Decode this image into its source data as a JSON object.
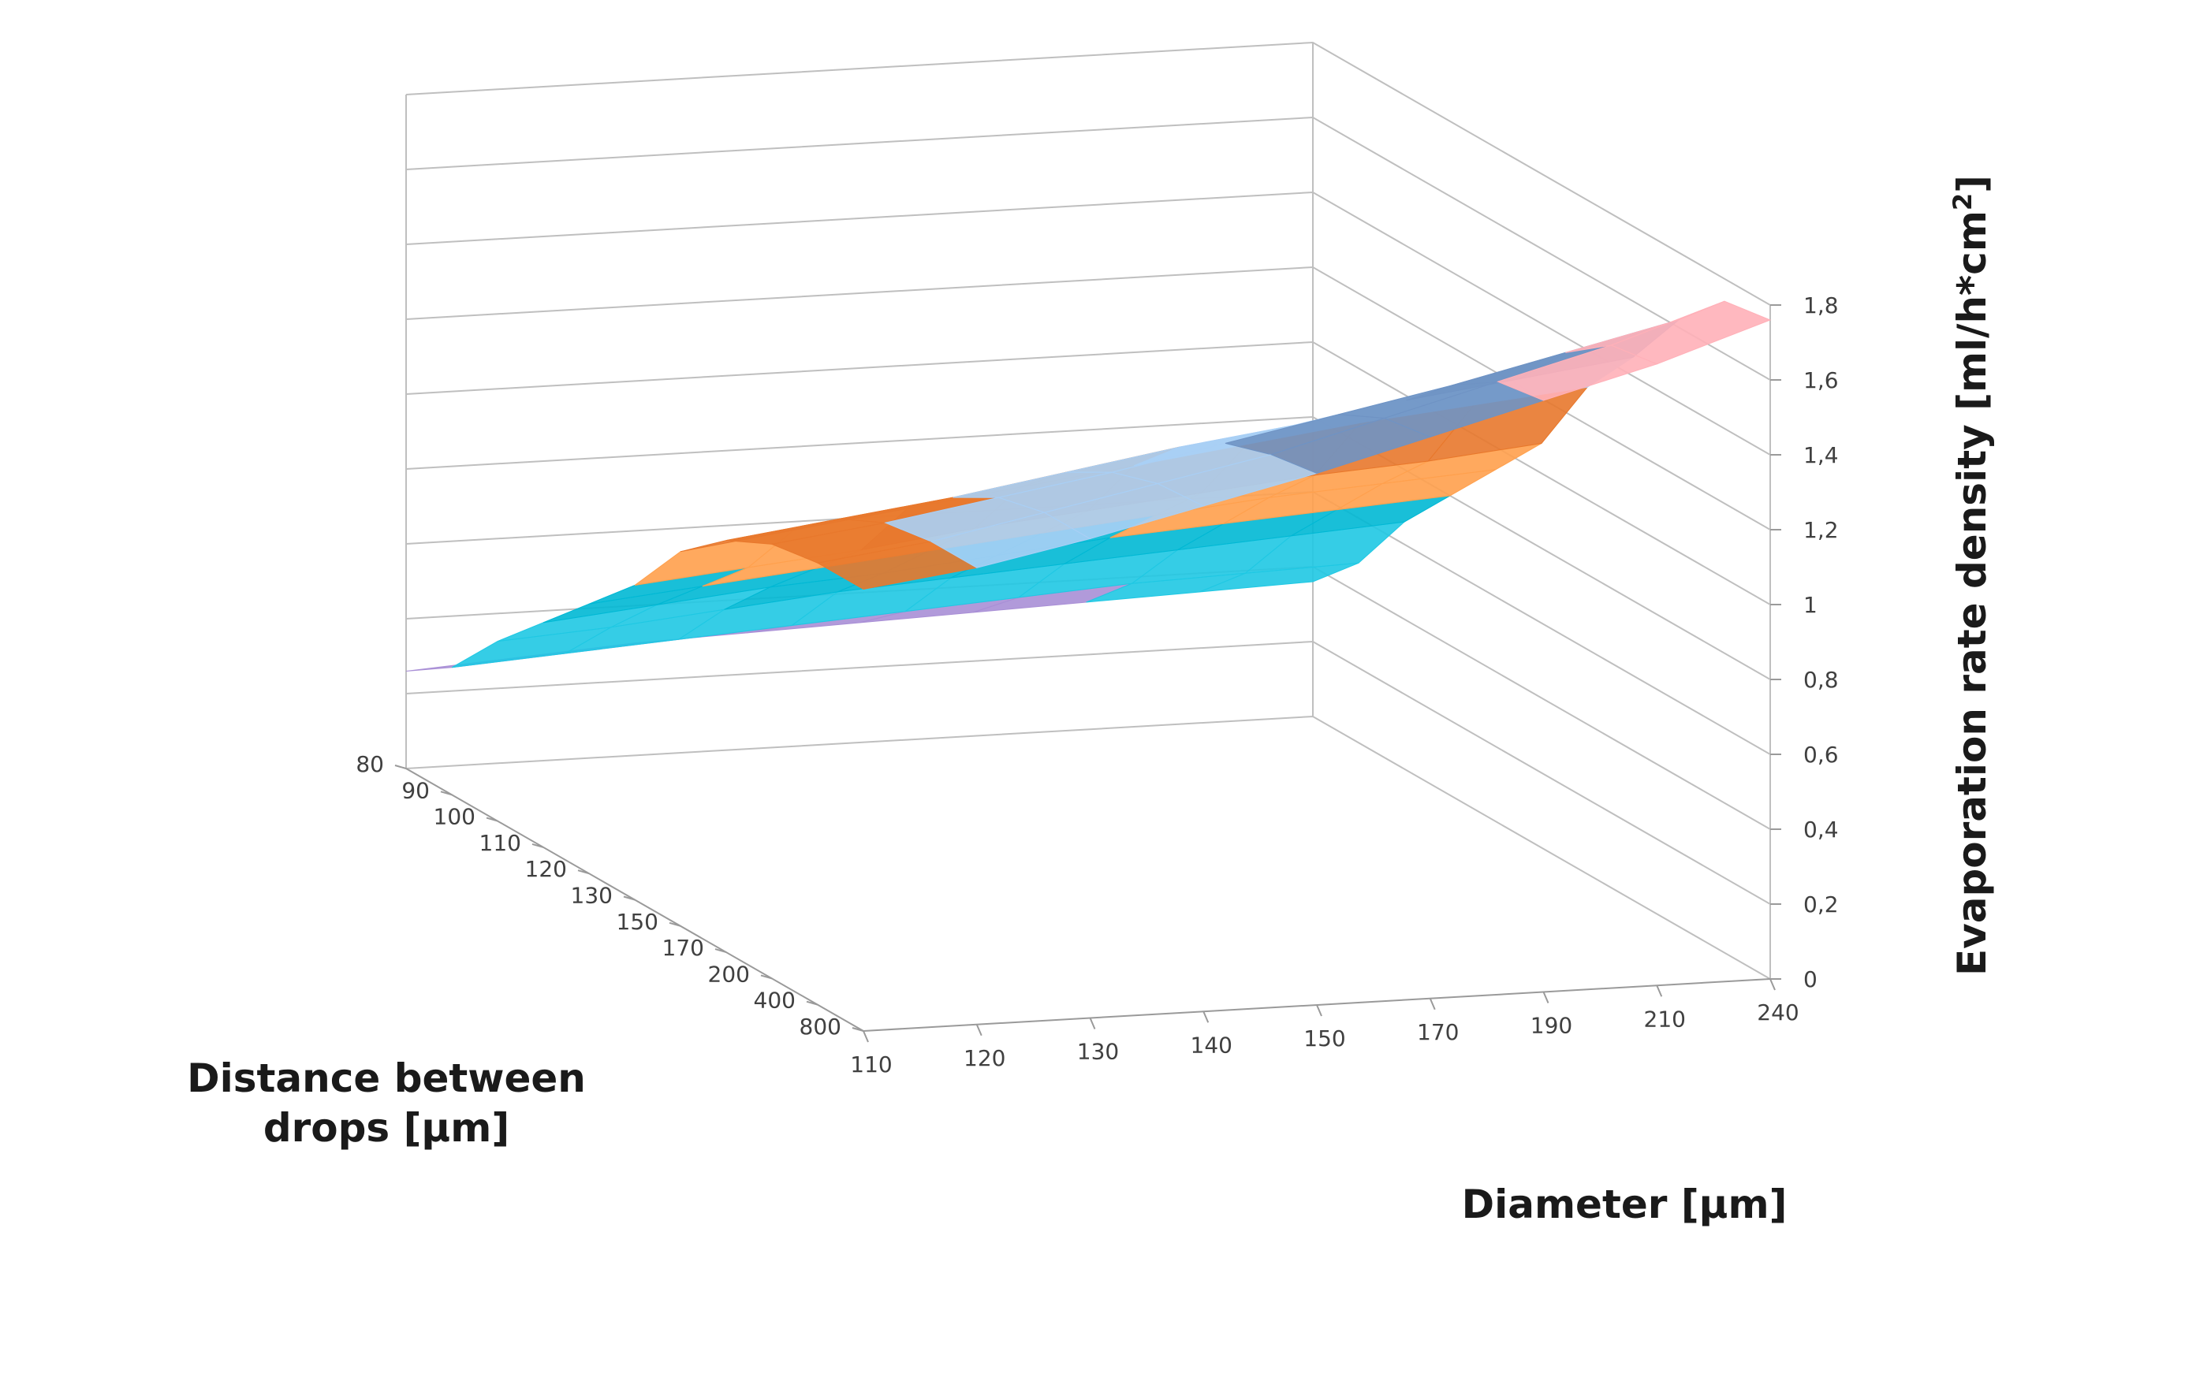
{
  "chart_data": {
    "type": "surface",
    "title": "",
    "xlabel": "Diameter [µm]",
    "ylabel_lines": [
      "Distance between",
      "drops [µm]"
    ],
    "zlabel": "Evaporation rate density [ml/h*cm",
    "zlabel_sup": "2",
    "zlabel_end": "]",
    "x_ticks": [
      "110",
      "120",
      "130",
      "140",
      "150",
      "170",
      "190",
      "210",
      "240"
    ],
    "y_ticks": [
      "80",
      "90",
      "100",
      "110",
      "120",
      "130",
      "150",
      "170",
      "200",
      "400",
      "800"
    ],
    "z_ticks": [
      "0",
      "0,2",
      "0,4",
      "0,6",
      "0,8",
      "1",
      "1,2",
      "1,4",
      "1,6",
      "1,8"
    ],
    "zlim": [
      0,
      1.8
    ],
    "grid": true,
    "legend": "none",
    "bands": [
      {
        "range": "0-0,2",
        "color": "#b5e37a"
      },
      {
        "range": "0,2-0,4",
        "color": "#a98fd6"
      },
      {
        "range": "0,4-0,6",
        "color": "#1fc8e3"
      },
      {
        "range": "0,6-0,8",
        "color": "#00b8d4"
      },
      {
        "range": "0,8-1",
        "color": "#ffa04d"
      },
      {
        "range": "1-1,2",
        "color": "#e8782c"
      },
      {
        "range": "1,2-1,4",
        "color": "#a9cff5"
      },
      {
        "range": "1,4-1,6",
        "color": "#6f93c4"
      },
      {
        "range": "1,6-1,8",
        "color": "#ffb0b8"
      }
    ],
    "z_values_by_distance": [
      {
        "distance": "80",
        "values": [
          0.26,
          0.28,
          0.3,
          0.31,
          0.32,
          0.33,
          0.34,
          0.35,
          0.36
        ]
      },
      {
        "distance": "90",
        "values": [
          0.34,
          0.36,
          0.38,
          0.4,
          0.42,
          0.44,
          0.46,
          0.47,
          0.48
        ]
      },
      {
        "distance": "100",
        "values": [
          0.48,
          0.5,
          0.53,
          0.56,
          0.58,
          0.6,
          0.62,
          0.64,
          0.66
        ]
      },
      {
        "distance": "110",
        "values": [
          0.6,
          0.63,
          0.66,
          0.68,
          0.71,
          0.74,
          0.76,
          0.78,
          0.8
        ]
      },
      {
        "distance": "120",
        "values": [
          0.72,
          0.75,
          0.78,
          0.81,
          0.84,
          0.87,
          0.9,
          0.92,
          0.94
        ]
      },
      {
        "distance": "130",
        "values": [
          0.84,
          0.87,
          0.9,
          0.94,
          0.97,
          1.0,
          1.03,
          1.05,
          1.08
        ]
      },
      {
        "distance": "150",
        "values": [
          1.0,
          1.04,
          1.08,
          1.12,
          1.16,
          1.2,
          1.24,
          1.27,
          1.3
        ]
      },
      {
        "distance": "170",
        "values": [
          1.1,
          1.14,
          1.18,
          1.23,
          1.28,
          1.32,
          1.37,
          1.41,
          1.45
        ]
      },
      {
        "distance": "200",
        "values": [
          1.16,
          1.2,
          1.25,
          1.3,
          1.36,
          1.42,
          1.48,
          1.55,
          1.62
        ]
      },
      {
        "distance": "400",
        "values": [
          1.18,
          1.22,
          1.28,
          1.34,
          1.4,
          1.48,
          1.56,
          1.64,
          1.74
        ]
      },
      {
        "distance": "800",
        "values": [
          1.18,
          1.22,
          1.28,
          1.35,
          1.42,
          1.5,
          1.58,
          1.66,
          1.76
        ]
      }
    ]
  }
}
